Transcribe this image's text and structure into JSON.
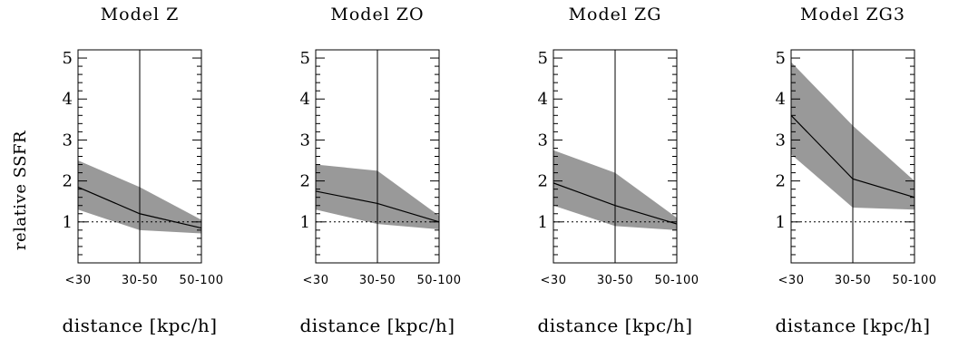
{
  "chart_data": [
    {
      "type": "line",
      "title": "Model Z",
      "xlabel": "distance [kpc/h]",
      "ylabel": "relative SSFR",
      "categories": [
        "<30",
        "30-50",
        "50-100"
      ],
      "ylim": [
        0,
        5.2
      ],
      "y_ticks": [
        1,
        2,
        3,
        4,
        5
      ],
      "reference_line": 1,
      "series": [
        {
          "values": [
            1.85,
            1.2,
            0.85
          ],
          "band_lower": [
            1.3,
            0.8,
            0.72
          ],
          "band_upper": [
            2.5,
            1.85,
            1.05
          ]
        }
      ]
    },
    {
      "type": "line",
      "title": "Model ZO",
      "xlabel": "distance [kpc/h]",
      "ylabel": "",
      "categories": [
        "<30",
        "30-50",
        "50-100"
      ],
      "ylim": [
        0,
        5.2
      ],
      "y_ticks": [
        1,
        2,
        3,
        4,
        5
      ],
      "reference_line": 1,
      "series": [
        {
          "values": [
            1.75,
            1.45,
            1.0
          ],
          "band_lower": [
            1.3,
            0.95,
            0.82
          ],
          "band_upper": [
            2.4,
            2.25,
            1.15
          ]
        }
      ]
    },
    {
      "type": "line",
      "title": "Model ZG",
      "xlabel": "distance [kpc/h]",
      "ylabel": "",
      "categories": [
        "<30",
        "30-50",
        "50-100"
      ],
      "ylim": [
        0,
        5.2
      ],
      "y_ticks": [
        1,
        2,
        3,
        4,
        5
      ],
      "reference_line": 1,
      "series": [
        {
          "values": [
            1.95,
            1.4,
            0.95
          ],
          "band_lower": [
            1.4,
            0.9,
            0.8
          ],
          "band_upper": [
            2.75,
            2.2,
            1.1
          ]
        }
      ]
    },
    {
      "type": "line",
      "title": "Model ZG3",
      "xlabel": "distance [kpc/h]",
      "ylabel": "",
      "categories": [
        "<30",
        "30-50",
        "50-100"
      ],
      "ylim": [
        0,
        5.2
      ],
      "y_ticks": [
        1,
        2,
        3,
        4,
        5
      ],
      "reference_line": 1,
      "series": [
        {
          "values": [
            3.6,
            2.05,
            1.6
          ],
          "band_lower": [
            2.65,
            1.35,
            1.3
          ],
          "band_upper": [
            4.9,
            3.35,
            2.0
          ]
        }
      ]
    }
  ],
  "colors": {
    "band": "#999999",
    "line": "#000000",
    "axes": "#000000"
  }
}
